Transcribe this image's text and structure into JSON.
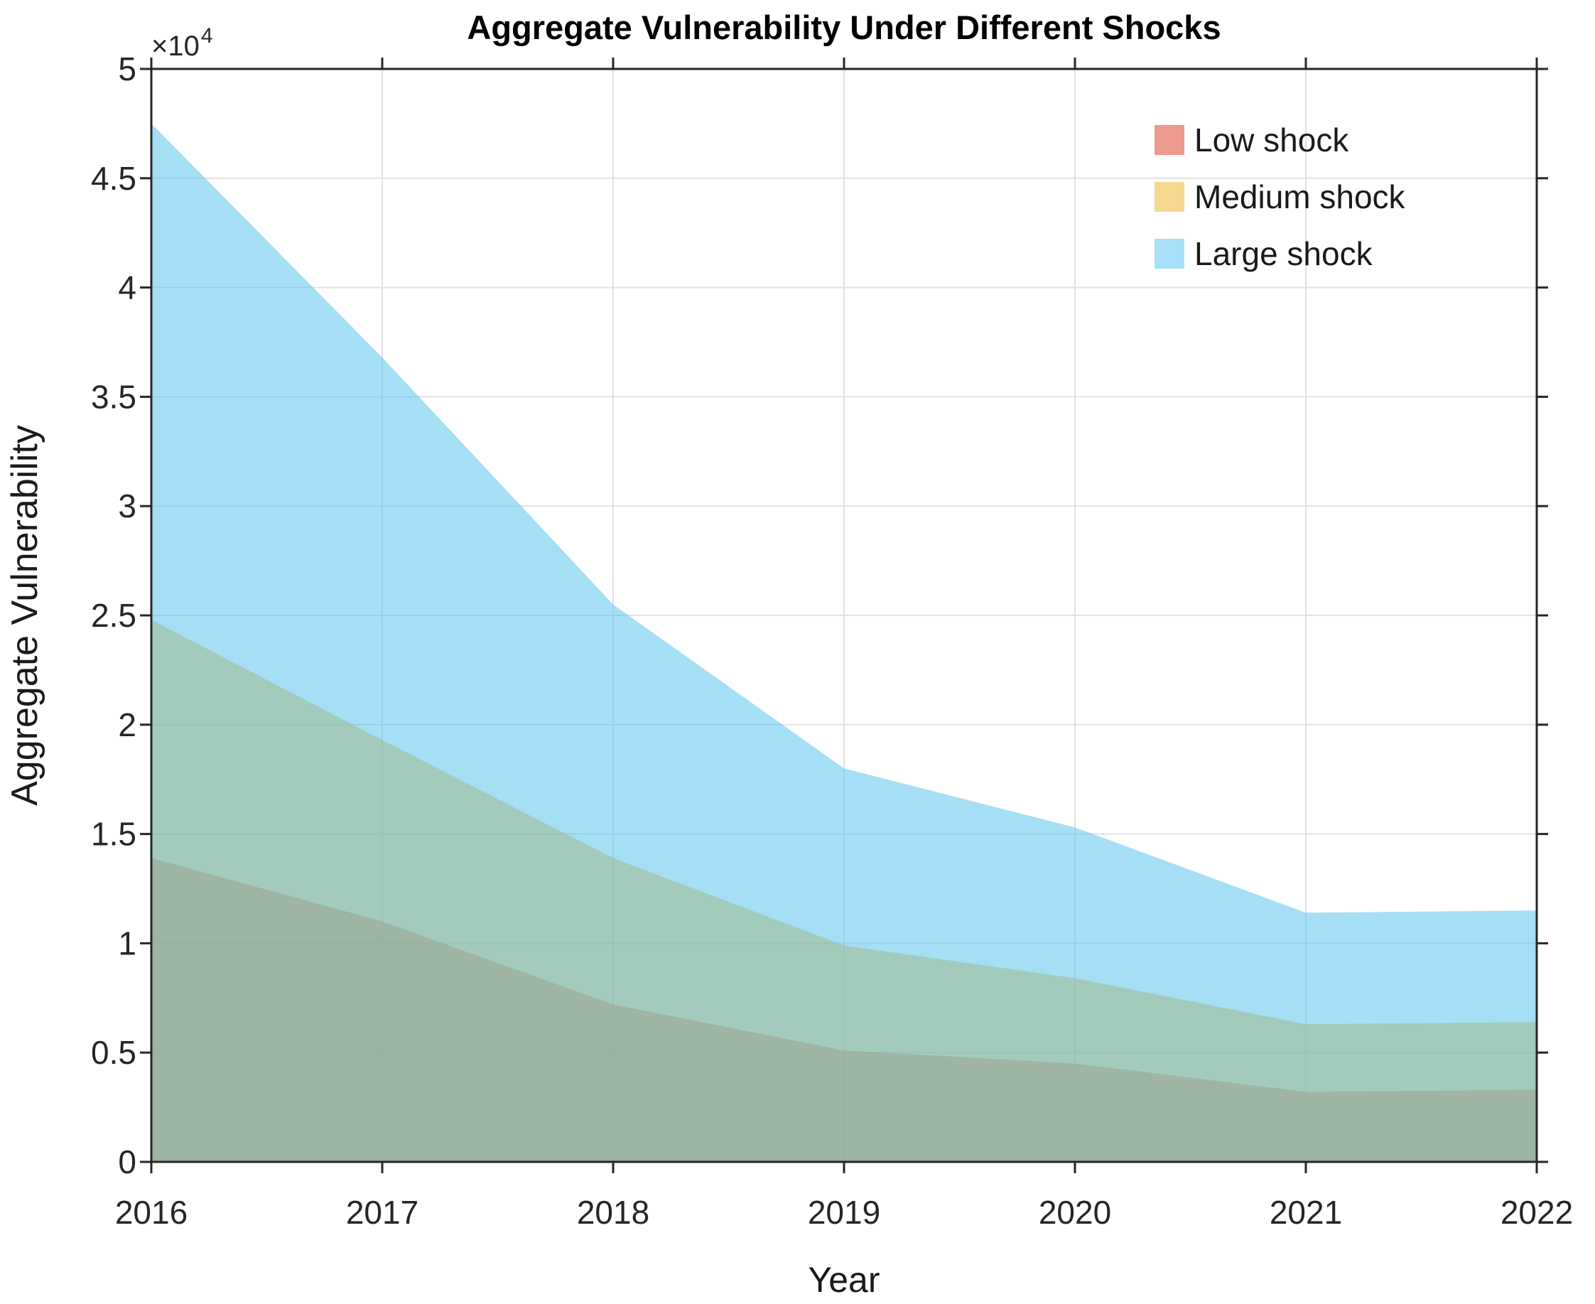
{
  "title": "Aggregate Vulnerability Under Different Shocks",
  "chart_data": {
    "type": "area",
    "mode": "overlapping-translucent",
    "x": [
      2016,
      2017,
      2018,
      2019,
      2020,
      2021,
      2022
    ],
    "x_tick_labels": [
      "2016",
      "2017",
      "2018",
      "2019",
      "2020",
      "2021",
      "2022"
    ],
    "series": [
      {
        "name": "Low shock",
        "base_color": "#D95319",
        "legend_color": "#EC9A8C",
        "values": [
          13900,
          11000,
          7200,
          5100,
          4500,
          3200,
          3300
        ]
      },
      {
        "name": "Medium shock",
        "base_color": "#EDB120",
        "legend_color": "#F6D890",
        "values": [
          24800,
          19300,
          13900,
          9900,
          8400,
          6300,
          6400
        ]
      },
      {
        "name": "Large shock",
        "base_color": "#4DBEEE",
        "legend_color": "#A6DFF7",
        "values": [
          47500,
          36800,
          25500,
          18000,
          15300,
          11400,
          11500
        ]
      }
    ],
    "fill_opacity": 0.5,
    "xlabel": "Year",
    "ylabel": "Aggregate Vulnerability",
    "ylim": [
      0,
      50000
    ],
    "ytick_step": 5000,
    "y_tick_labels": [
      "0",
      "0.5",
      "1",
      "1.5",
      "2",
      "2.5",
      "3",
      "3.5",
      "4",
      "4.5",
      "5"
    ],
    "y_multiplier": {
      "base": "×10",
      "exp": "4"
    },
    "grid": true,
    "grid_color": "#e2e2e2",
    "axis_color": "#262626",
    "legend_position": "upper-right",
    "legend_entries": [
      "Low shock",
      "Medium shock",
      "Large shock"
    ]
  }
}
